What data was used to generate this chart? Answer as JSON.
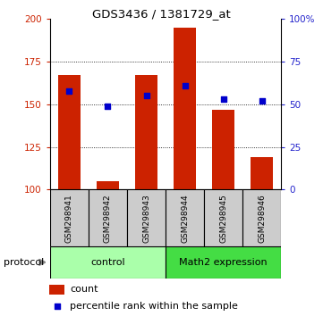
{
  "title": "GDS3436 / 1381729_at",
  "samples": [
    "GSM298941",
    "GSM298942",
    "GSM298943",
    "GSM298944",
    "GSM298945",
    "GSM298946"
  ],
  "bar_values": [
    167,
    105,
    167,
    195,
    147,
    119
  ],
  "percentile_values": [
    158,
    149,
    155,
    161,
    153,
    152
  ],
  "bar_color": "#cc2200",
  "percentile_color": "#0000cc",
  "ylim_left": [
    100,
    200
  ],
  "ylim_right": [
    0,
    100
  ],
  "yticks_left": [
    100,
    125,
    150,
    175,
    200
  ],
  "ytick_labels_left": [
    "100",
    "125",
    "150",
    "175",
    "200"
  ],
  "yticks_right": [
    0,
    25,
    50,
    75,
    100
  ],
  "ytick_labels_right": [
    "0",
    "25",
    "50",
    "75",
    "100%"
  ],
  "groups": [
    {
      "label": "control",
      "start": 0,
      "end": 3,
      "color": "#aaffaa"
    },
    {
      "label": "Math2 expression",
      "start": 3,
      "end": 6,
      "color": "#44dd44"
    }
  ],
  "protocol_label": "protocol",
  "legend_count_label": "count",
  "legend_percentile_label": "percentile rank within the sample",
  "left_tick_color": "#cc2200",
  "right_tick_color": "#2222cc",
  "bar_bottom": 100,
  "sample_box_color": "#cccccc",
  "border_color": "#000000"
}
